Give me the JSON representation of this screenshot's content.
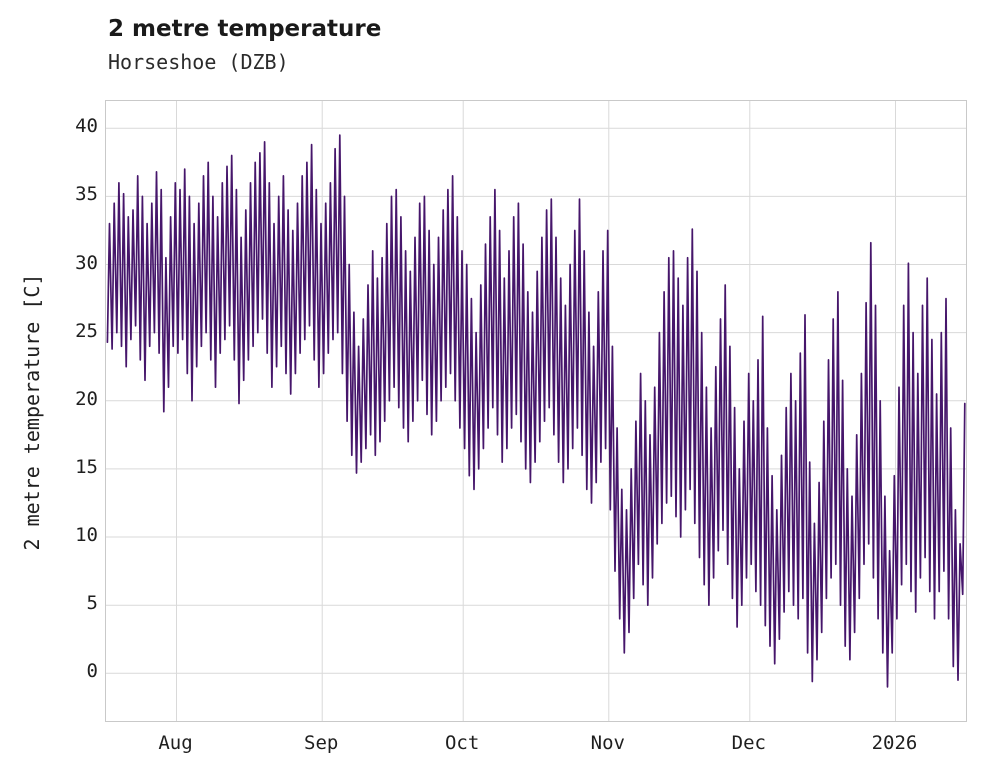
{
  "header": {
    "title": "2 metre temperature",
    "subtitle": "Horseshoe (DZB)"
  },
  "chart_data": {
    "type": "line",
    "title": "2 metre temperature",
    "subtitle": "Horseshoe (DZB)",
    "station": "Horseshoe (DZB)",
    "xlabel": "",
    "ylabel": "2 metre temperature [C]",
    "line_color": "#46166b",
    "grid": true,
    "ylim": [
      -3.5,
      42
    ],
    "yticks": [
      0,
      5,
      10,
      15,
      20,
      25,
      30,
      35,
      40
    ],
    "x_range": [
      0,
      183
    ],
    "x_unit": "days since 2025-07-17, two points per day (daily min and max of hourly series)",
    "xticks": [
      {
        "day": 15,
        "label": "Aug"
      },
      {
        "day": 46,
        "label": "Sep"
      },
      {
        "day": 76,
        "label": "Oct"
      },
      {
        "day": 107,
        "label": "Nov"
      },
      {
        "day": 137,
        "label": "Dec"
      },
      {
        "day": 168,
        "label": "2026"
      }
    ],
    "daily_min": [
      24.3,
      23.8,
      25.0,
      24.0,
      22.5,
      24.5,
      25.5,
      23.0,
      21.5,
      24.0,
      25.0,
      23.5,
      19.2,
      21.0,
      24.0,
      23.5,
      24.5,
      22.0,
      20.0,
      22.5,
      24.0,
      25.0,
      23.0,
      21.0,
      23.5,
      24.5,
      25.5,
      23.0,
      19.8,
      21.5,
      23.0,
      24.0,
      25.0,
      26.0,
      23.5,
      21.0,
      22.5,
      24.0,
      22.0,
      20.5,
      22.0,
      23.5,
      24.5,
      25.5,
      23.0,
      21.0,
      22.0,
      23.5,
      24.5,
      25.0,
      22.0,
      18.5,
      16.0,
      14.7,
      15.5,
      16.5,
      17.5,
      16.0,
      17.0,
      18.5,
      20.0,
      21.0,
      19.5,
      18.0,
      17.0,
      18.5,
      20.0,
      21.5,
      19.0,
      17.5,
      18.5,
      20.0,
      21.0,
      22.0,
      20.0,
      18.0,
      16.5,
      14.5,
      13.5,
      15.0,
      16.5,
      18.0,
      19.5,
      17.5,
      15.5,
      16.5,
      18.0,
      19.0,
      17.0,
      15.0,
      14.0,
      15.5,
      17.0,
      18.5,
      19.5,
      17.5,
      15.5,
      14.0,
      15.0,
      16.5,
      18.0,
      16.0,
      13.5,
      12.5,
      14.0,
      15.5,
      16.5,
      12.0,
      7.5,
      4.0,
      1.5,
      3.0,
      5.5,
      8.0,
      6.5,
      5.0,
      7.0,
      9.5,
      11.0,
      12.5,
      13.0,
      11.5,
      10.0,
      12.0,
      13.5,
      11.0,
      8.5,
      6.5,
      5.0,
      7.0,
      9.0,
      10.5,
      8.0,
      5.5,
      3.4,
      5.0,
      7.0,
      8.0,
      6.0,
      5.0,
      3.5,
      2.0,
      0.7,
      2.5,
      4.5,
      6.0,
      5.0,
      4.0,
      5.5,
      1.5,
      -0.6,
      1.0,
      3.0,
      5.5,
      7.0,
      8.0,
      5.0,
      2.0,
      1.0,
      3.0,
      5.5,
      8.0,
      9.5,
      7.0,
      4.0,
      1.5,
      -1.0,
      1.5,
      4.0,
      6.5,
      8.0,
      6.0,
      4.5,
      7.0,
      8.5,
      6.0,
      4.0,
      6.0,
      7.5,
      4.0,
      0.5,
      -0.5,
      5.8
    ],
    "daily_max": [
      33.0,
      34.5,
      36.0,
      35.2,
      33.5,
      34.0,
      36.5,
      35.0,
      33.0,
      34.5,
      36.8,
      35.5,
      30.5,
      33.5,
      36.0,
      35.5,
      37.0,
      35.0,
      33.0,
      34.5,
      36.5,
      37.5,
      35.0,
      33.5,
      36.0,
      37.2,
      38.0,
      35.5,
      32.0,
      34.0,
      36.0,
      37.5,
      38.2,
      39.0,
      36.0,
      33.0,
      35.0,
      36.5,
      34.0,
      32.5,
      34.5,
      36.5,
      37.5,
      38.8,
      35.5,
      33.0,
      34.5,
      36.0,
      38.5,
      39.5,
      35.0,
      30.0,
      26.5,
      24.0,
      26.0,
      28.5,
      31.0,
      29.0,
      30.5,
      33.0,
      35.0,
      35.5,
      33.5,
      31.0,
      29.5,
      32.0,
      34.5,
      35.0,
      32.5,
      30.0,
      32.0,
      34.0,
      35.5,
      36.5,
      33.5,
      31.0,
      30.0,
      27.5,
      25.0,
      28.5,
      31.5,
      33.5,
      35.5,
      32.5,
      29.0,
      31.0,
      33.5,
      34.5,
      31.5,
      28.0,
      26.5,
      29.5,
      32.0,
      34.0,
      34.8,
      32.0,
      29.0,
      27.0,
      30.0,
      32.5,
      34.8,
      31.0,
      26.5,
      24.0,
      28.0,
      31.0,
      32.5,
      24.0,
      18.0,
      13.5,
      12.0,
      15.0,
      18.5,
      22.0,
      20.0,
      17.5,
      21.0,
      25.0,
      28.0,
      30.5,
      31.0,
      29.0,
      27.0,
      30.5,
      32.6,
      29.5,
      25.0,
      21.0,
      18.0,
      22.5,
      26.0,
      28.5,
      24.0,
      19.5,
      15.0,
      18.5,
      22.0,
      20.0,
      23.0,
      26.2,
      18.0,
      14.5,
      12.0,
      16.0,
      19.5,
      22.0,
      20.0,
      23.5,
      26.3,
      15.5,
      11.0,
      14.0,
      18.5,
      23.0,
      26.0,
      28.0,
      21.5,
      15.0,
      13.0,
      17.5,
      22.0,
      27.2,
      31.6,
      27.0,
      20.0,
      13.0,
      9.0,
      14.5,
      21.0,
      27.0,
      30.1,
      25.0,
      22.0,
      27.0,
      29.0,
      24.5,
      20.5,
      25.0,
      27.5,
      18.0,
      12.0,
      9.5,
      19.8
    ]
  }
}
